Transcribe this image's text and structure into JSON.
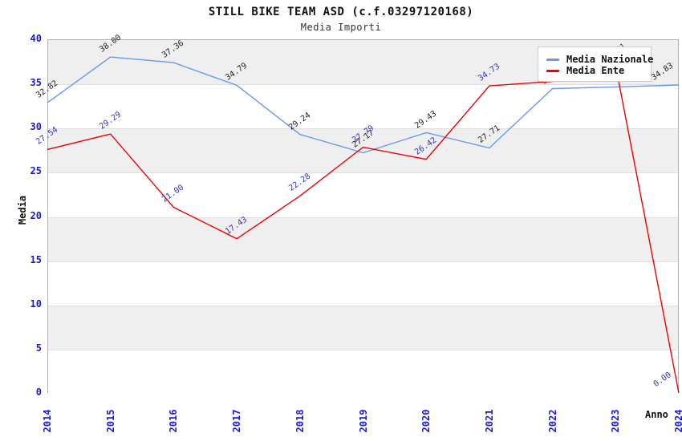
{
  "chart_data": {
    "type": "line",
    "title": "STILL BIKE TEAM ASD (c.f.03297120168)",
    "subtitle": "Media Importi",
    "xlabel": "Anno",
    "ylabel": "Media",
    "x": [
      "2014",
      "2015",
      "2016",
      "2017",
      "2018",
      "2019",
      "2020",
      "2021",
      "2022",
      "2023",
      "2024"
    ],
    "ylim": [
      0,
      40
    ],
    "ytick_step": 5,
    "yticks": [
      "0",
      "5",
      "10",
      "15",
      "20",
      "25",
      "30",
      "35",
      "40"
    ],
    "grid": "horizontal-gridlines-with-alternating-bands",
    "legend_position": "top-right-inside",
    "series": [
      {
        "name": "Media Nazionale",
        "color": "#6699ee",
        "label_color": "#222222",
        "values": [
          32.82,
          38.0,
          37.36,
          34.79,
          29.24,
          27.17,
          29.43,
          27.71,
          34.42,
          34.61,
          34.83
        ]
      },
      {
        "name": "Media Ente",
        "color": "#ee0000",
        "label_color": "#3333bb",
        "values": [
          27.54,
          29.29,
          21.0,
          17.43,
          22.28,
          27.79,
          26.42,
          34.73,
          35.23,
          37.01,
          0.0
        ]
      }
    ]
  },
  "colors": {
    "axis_tick": "#1a1acc",
    "band_fill": "#efefef",
    "gridline": "#e0e0e0",
    "plot_border": "#b3b3b3",
    "legend_bg": "#ffffff",
    "legend_border": "#cccccc"
  }
}
